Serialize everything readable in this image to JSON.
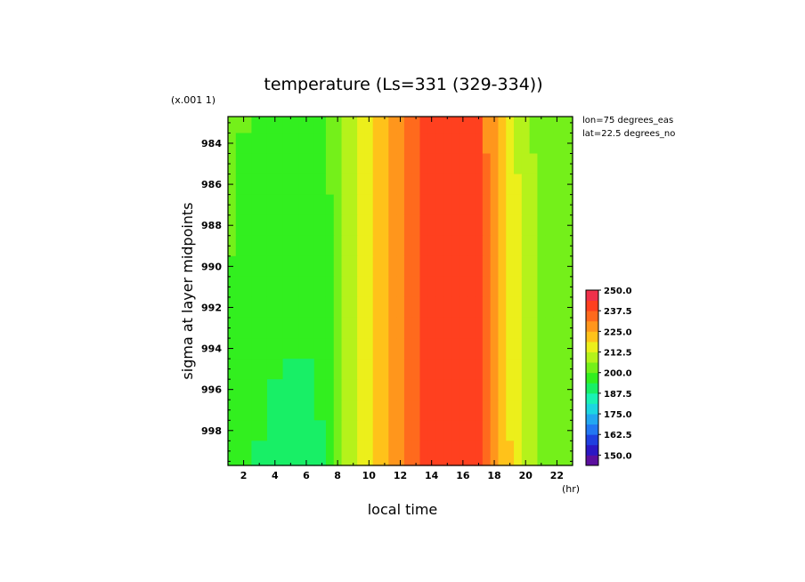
{
  "chart_data": {
    "type": "heatmap",
    "title": "temperature (Ls=331 (329-334))",
    "xlabel": "local time",
    "x_unit": "(hr)",
    "ylabel": "sigma at layer midpoints",
    "y_scale_note": "(x.001 1)",
    "annotations": [
      "lon=75 degrees_eas",
      "lat=22.5 degrees_no"
    ],
    "x_range": [
      1,
      23
    ],
    "y_range": [
      982.7,
      999.7
    ],
    "y_inverted": true,
    "x_ticks": [
      "2",
      "4",
      "6",
      "8",
      "10",
      "12",
      "14",
      "16",
      "18",
      "20",
      "22"
    ],
    "y_ticks": [
      "984",
      "986",
      "988",
      "990",
      "992",
      "994",
      "996",
      "998"
    ],
    "colorbar": {
      "min": 143.75,
      "max": 250.0,
      "step": 6.25,
      "labels": [
        "250.0",
        "237.5",
        "225.0",
        "212.5",
        "200.0",
        "187.5",
        "175.0",
        "162.5",
        "150.0"
      ],
      "colors": [
        "#5b0f9e",
        "#2b17c4",
        "#1f3fe0",
        "#2277f2",
        "#22a7f0",
        "#1cd6e0",
        "#19f2b4",
        "#18ef66",
        "#32ef1f",
        "#74f01a",
        "#b5f21b",
        "#ecef1b",
        "#ffc21a",
        "#ff961c",
        "#ff6a1d",
        "#ff401f",
        "#f0304a"
      ]
    },
    "sigma_rows": [
      983,
      984,
      985,
      986,
      987,
      988,
      989,
      990,
      991,
      992,
      993,
      994,
      995,
      996,
      997,
      998,
      999,
      999.7
    ],
    "local_time_cols": [
      1,
      2,
      3,
      4,
      5,
      6,
      7,
      7.5,
      8,
      8.5,
      9,
      9.5,
      10,
      10.5,
      11,
      11.5,
      12,
      12.5,
      13,
      13.5,
      14,
      14.5,
      15,
      15.5,
      16,
      16.5,
      17,
      17.5,
      18,
      18.5,
      19,
      19.5,
      20,
      20.5,
      21,
      21.5,
      22,
      22.5,
      23
    ],
    "temperature_profile_K": [
      202,
      200,
      199,
      198,
      197.5,
      197.5,
      198.5,
      201,
      205,
      208,
      211,
      214,
      217,
      220,
      223,
      226,
      229,
      232,
      235,
      237.5,
      240,
      241,
      242,
      242,
      241,
      240,
      239.5,
      233,
      228,
      223,
      218,
      214,
      211,
      208,
      205,
      203.5,
      202,
      201.5,
      201
    ]
  }
}
